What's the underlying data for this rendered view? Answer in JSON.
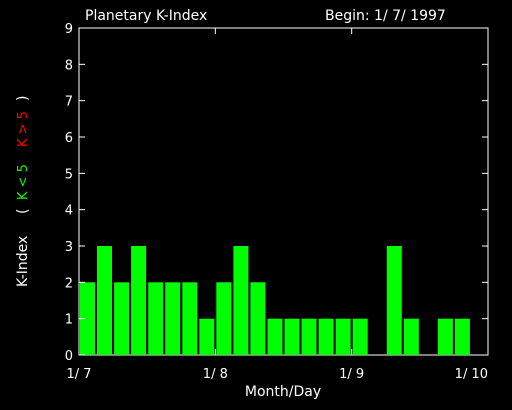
{
  "chart_data": {
    "type": "bar",
    "title": "Planetary K-Index",
    "begin_label": "Begin: 1/ 7/ 1997",
    "xlabel": "Month/Day",
    "ylabel": {
      "main": "K-Index",
      "legend_low": "K < 5",
      "legend_high": "K > 5",
      "paren_open": "(",
      "paren_close": ")"
    },
    "ylim": [
      0,
      9
    ],
    "yticks": [
      "0",
      "1",
      "2",
      "3",
      "4",
      "5",
      "6",
      "7",
      "8",
      "9"
    ],
    "xticks": [
      {
        "label": "1/ 7",
        "day_offset": 0
      },
      {
        "label": "1/ 8",
        "day_offset": 1
      },
      {
        "label": "1/ 9",
        "day_offset": 2
      },
      {
        "label": "1/ 10",
        "day_offset": 3
      }
    ],
    "bar_interval_hours": 3,
    "values": [
      2,
      3,
      2,
      3,
      2,
      2,
      2,
      1,
      2,
      3,
      2,
      1,
      1,
      1,
      1,
      1,
      1,
      0,
      3,
      1,
      0,
      1,
      1,
      0
    ],
    "colors": {
      "low": "#00ff00",
      "high": "#ff0000",
      "axis": "#ffffff",
      "background": "#000000"
    }
  }
}
